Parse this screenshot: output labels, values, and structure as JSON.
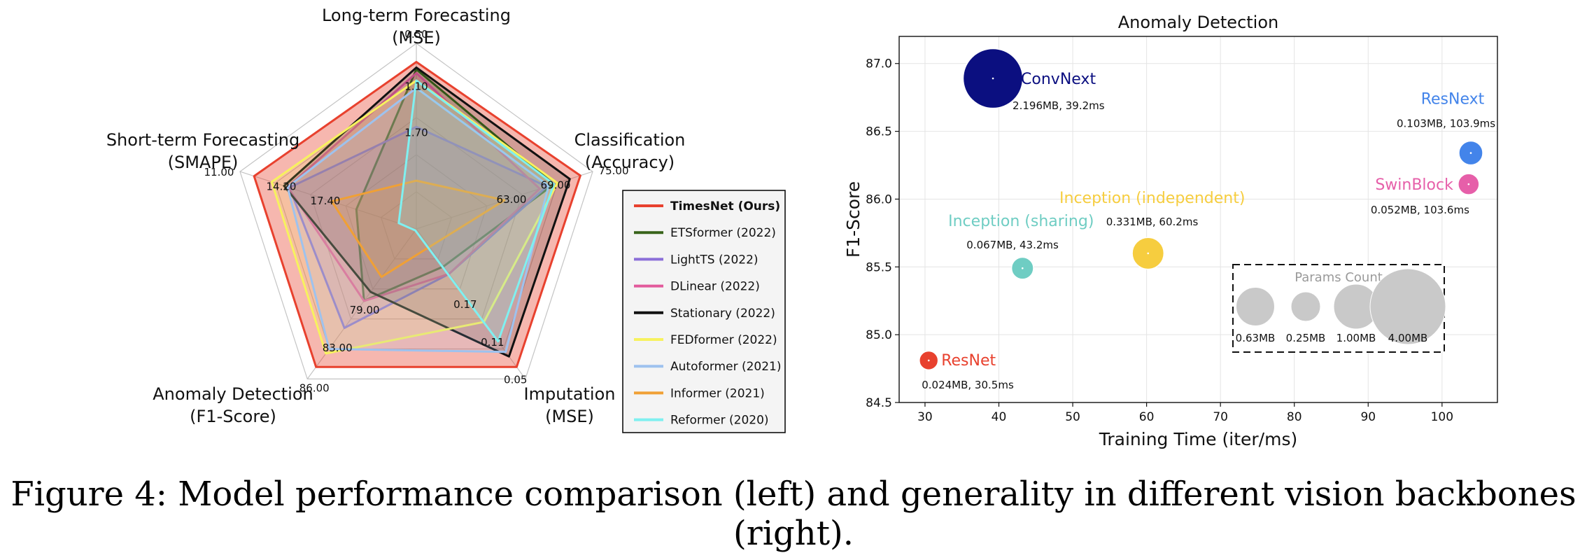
{
  "caption": "Figure 4: Model performance comparison (left) and generality in different vision backbones (right).",
  "chart_data": [
    {
      "type": "radar",
      "axes": [
        {
          "label": [
            "Long-term Forecasting",
            "(MSE)"
          ],
          "ticks": [
            "0.50",
            "1.10",
            "1.70"
          ]
        },
        {
          "label": [
            "Classification",
            "(Accuracy)"
          ],
          "ticks": [
            "75.00",
            "69.00",
            "63.00"
          ]
        },
        {
          "label": [
            "Imputation",
            "(MSE)"
          ],
          "ticks": [
            "0.05",
            "0.11",
            "0.17"
          ]
        },
        {
          "label": [
            "Anomaly Detection",
            "(F1-Score)"
          ],
          "ticks": [
            "86.00",
            "83.00",
            "79.00"
          ]
        },
        {
          "label": [
            "Short-term Forecasting",
            "(SMAPE)"
          ],
          "ticks": [
            "11.00",
            "14.20",
            "17.40"
          ]
        }
      ],
      "scale": [
        0,
        1
      ],
      "series": [
        {
          "name": "TimesNet (Ours)",
          "color": "#e8412e",
          "values": [
            0.9,
            0.93,
            0.92,
            0.92,
            0.92
          ],
          "fill": true
        },
        {
          "name": "ETSformer (2022)",
          "color": "#38631a",
          "values": [
            0.86,
            0.78,
            0.25,
            0.48,
            0.34
          ]
        },
        {
          "name": "LightTS (2022)",
          "color": "#8b6ed8",
          "values": [
            0.55,
            0.74,
            0.3,
            0.66,
            0.72
          ]
        },
        {
          "name": "DLinear (2022)",
          "color": "#e25a9c",
          "values": [
            0.84,
            0.7,
            0.3,
            0.48,
            0.73
          ]
        },
        {
          "name": "Stationary (2022)",
          "color": "#111111",
          "values": [
            0.87,
            0.87,
            0.85,
            0.42,
            0.75
          ]
        },
        {
          "name": "FEDformer (2022)",
          "color": "#f7f25e",
          "values": [
            0.8,
            0.8,
            0.62,
            0.83,
            0.82
          ]
        },
        {
          "name": "Autoformer (2021)",
          "color": "#9ec2ee",
          "values": [
            0.76,
            0.75,
            0.82,
            0.8,
            0.73
          ]
        },
        {
          "name": "Informer (2021)",
          "color": "#f0a035",
          "values": [
            0.26,
            0.5,
            0.12,
            0.32,
            0.48
          ]
        },
        {
          "name": "Reformer (2020)",
          "color": "#7ff0f0",
          "values": [
            0.8,
            0.78,
            0.75,
            0.01,
            0.1
          ]
        }
      ]
    },
    {
      "type": "scatter",
      "title": "Anomaly Detection",
      "xlabel": "Training Time (iter/ms)",
      "ylabel": "F1-Score",
      "xlim": [
        26.5,
        107.5
      ],
      "ylim": [
        84.5,
        87.2
      ],
      "xticks": [
        "30",
        "40",
        "50",
        "60",
        "70",
        "80",
        "90",
        "100"
      ],
      "yticks": [
        "84.5",
        "85.0",
        "85.5",
        "86.0",
        "86.5",
        "87.0"
      ],
      "grid": true,
      "points": [
        {
          "name": "ResNet",
          "x": 30.5,
          "y": 84.81,
          "params": 0.024,
          "color": "#e8412e",
          "annotation": "0.024MB, 30.5ms"
        },
        {
          "name": "Inception (sharing)",
          "x": 43.2,
          "y": 85.49,
          "params": 0.067,
          "color": "#6fcdc3",
          "annotation": "0.067MB, 43.2ms"
        },
        {
          "name": "Inception (independent)",
          "x": 60.2,
          "y": 85.6,
          "params": 0.331,
          "color": "#f6cd3f",
          "annotation": "0.331MB, 60.2ms"
        },
        {
          "name": "ConvNext",
          "x": 39.2,
          "y": 86.89,
          "params": 2.196,
          "color": "#0b0f80",
          "annotation": "2.196MB, 39.2ms"
        },
        {
          "name": "ResNext",
          "x": 103.9,
          "y": 86.34,
          "params": 0.103,
          "color": "#4384ea",
          "annotation": "0.103MB, 103.9ms"
        },
        {
          "name": "SwinBlock",
          "x": 103.6,
          "y": 86.11,
          "params": 0.052,
          "color": "#e65fa9",
          "annotation": "0.052MB, 103.6ms"
        }
      ],
      "size_legend": {
        "title": "Params Count",
        "items": [
          {
            "label": "0.63MB",
            "params": 0.63
          },
          {
            "label": "0.25MB",
            "params": 0.25
          },
          {
            "label": "1.00MB",
            "params": 1.0
          },
          {
            "label": "4.00MB",
            "params": 4.0
          }
        ]
      }
    }
  ]
}
